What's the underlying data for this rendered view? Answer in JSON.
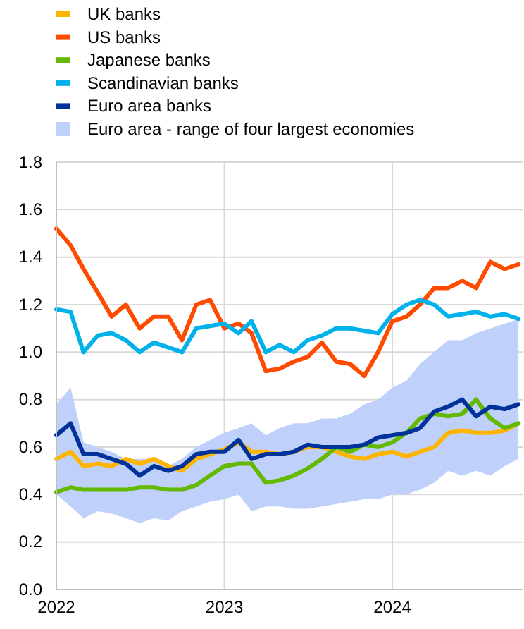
{
  "chart_data": {
    "type": "line",
    "x": [
      "2022-01-01",
      "2022-02-01",
      "2022-03-01",
      "2022-04-01",
      "2022-05-01",
      "2022-06-01",
      "2022-07-01",
      "2022-08-01",
      "2022-09-01",
      "2022-10-01",
      "2022-11-01",
      "2022-12-01",
      "2023-01-01",
      "2023-02-01",
      "2023-03-01",
      "2023-04-01",
      "2023-05-01",
      "2023-06-01",
      "2023-07-01",
      "2023-08-01",
      "2023-09-01",
      "2023-10-01",
      "2023-11-01",
      "2023-12-01",
      "2024-01-01",
      "2024-02-01",
      "2024-03-01",
      "2024-04-01",
      "2024-05-01",
      "2024-06-01",
      "2024-07-01",
      "2024-08-01",
      "2024-09-01",
      "2024-10-01"
    ],
    "series": [
      {
        "name": "UK banks",
        "color": "#ffb400",
        "values": [
          0.55,
          0.58,
          0.52,
          0.53,
          0.52,
          0.55,
          0.53,
          0.55,
          0.52,
          0.5,
          0.55,
          0.57,
          0.59,
          0.62,
          0.58,
          0.58,
          0.57,
          0.58,
          0.6,
          0.6,
          0.58,
          0.56,
          0.55,
          0.57,
          0.58,
          0.56,
          0.58,
          0.6,
          0.66,
          0.67,
          0.66,
          0.66,
          0.67,
          0.7
        ]
      },
      {
        "name": "US banks",
        "color": "#ff4b00",
        "values": [
          1.52,
          1.45,
          1.35,
          1.25,
          1.15,
          1.2,
          1.1,
          1.15,
          1.15,
          1.05,
          1.2,
          1.22,
          1.1,
          1.12,
          1.08,
          0.92,
          0.93,
          0.96,
          0.98,
          1.04,
          0.96,
          0.95,
          0.9,
          1.0,
          1.13,
          1.15,
          1.2,
          1.27,
          1.27,
          1.3,
          1.27,
          1.38,
          1.35,
          1.37
        ]
      },
      {
        "name": "Japanese banks",
        "color": "#65b800",
        "values": [
          0.41,
          0.43,
          0.42,
          0.42,
          0.42,
          0.42,
          0.43,
          0.43,
          0.42,
          0.42,
          0.44,
          0.48,
          0.52,
          0.53,
          0.53,
          0.45,
          0.46,
          0.48,
          0.51,
          0.55,
          0.6,
          0.58,
          0.61,
          0.6,
          0.62,
          0.66,
          0.72,
          0.74,
          0.73,
          0.74,
          0.8,
          0.72,
          0.68,
          0.7
        ]
      },
      {
        "name": "Scandinavian banks",
        "color": "#00b1ea",
        "values": [
          1.18,
          1.17,
          1.0,
          1.07,
          1.08,
          1.05,
          1.0,
          1.04,
          1.02,
          1.0,
          1.1,
          1.11,
          1.12,
          1.08,
          1.13,
          1.0,
          1.03,
          1.0,
          1.05,
          1.07,
          1.1,
          1.1,
          1.09,
          1.08,
          1.16,
          1.2,
          1.22,
          1.2,
          1.15,
          1.16,
          1.17,
          1.15,
          1.16,
          1.14
        ]
      },
      {
        "name": "Euro area banks",
        "color": "#003299",
        "values": [
          0.65,
          0.7,
          0.57,
          0.57,
          0.55,
          0.53,
          0.48,
          0.52,
          0.5,
          0.52,
          0.57,
          0.58,
          0.58,
          0.63,
          0.55,
          0.57,
          0.57,
          0.58,
          0.61,
          0.6,
          0.6,
          0.6,
          0.61,
          0.64,
          0.65,
          0.66,
          0.68,
          0.75,
          0.77,
          0.8,
          0.73,
          0.77,
          0.76,
          0.78
        ]
      },
      {
        "name": "Euro area - range of four largest economies",
        "color": "#bfd1fa",
        "type": "area",
        "values": [
          null,
          null,
          null,
          null,
          null,
          null,
          null,
          null,
          null,
          null,
          null,
          null,
          null,
          null,
          null,
          null,
          null,
          null,
          null,
          null,
          null,
          null,
          null,
          null,
          null,
          null,
          null,
          null,
          null,
          null,
          null,
          null,
          null,
          null
        ],
        "lower": [
          0.4,
          0.35,
          0.3,
          0.33,
          0.32,
          0.3,
          0.28,
          0.3,
          0.29,
          0.33,
          0.35,
          0.37,
          0.38,
          0.4,
          0.33,
          0.35,
          0.35,
          0.34,
          0.34,
          0.35,
          0.36,
          0.37,
          0.38,
          0.38,
          0.4,
          0.4,
          0.42,
          0.45,
          0.5,
          0.48,
          0.5,
          0.48,
          0.52,
          0.55
        ],
        "upper": [
          0.78,
          0.85,
          0.62,
          0.6,
          0.58,
          0.55,
          0.55,
          0.55,
          0.52,
          0.55,
          0.6,
          0.63,
          0.66,
          0.68,
          0.7,
          0.65,
          0.68,
          0.7,
          0.7,
          0.72,
          0.72,
          0.74,
          0.78,
          0.8,
          0.85,
          0.88,
          0.95,
          1.0,
          1.05,
          1.05,
          1.08,
          1.1,
          1.12,
          1.14
        ]
      }
    ],
    "xlim": [
      "2022-01-01",
      "2024-10-10"
    ],
    "xticks": [
      "2022",
      "2023",
      "2024"
    ],
    "ylim": [
      0,
      1.8
    ],
    "yticks": [
      {
        "value": 0,
        "label": "0.0"
      },
      0.2,
      0.4,
      0.6,
      0.8,
      {
        "value": 1,
        "label": "1.0"
      },
      1.2,
      1.4,
      1.6,
      1.8
    ],
    "grid": true,
    "legend": "top"
  }
}
